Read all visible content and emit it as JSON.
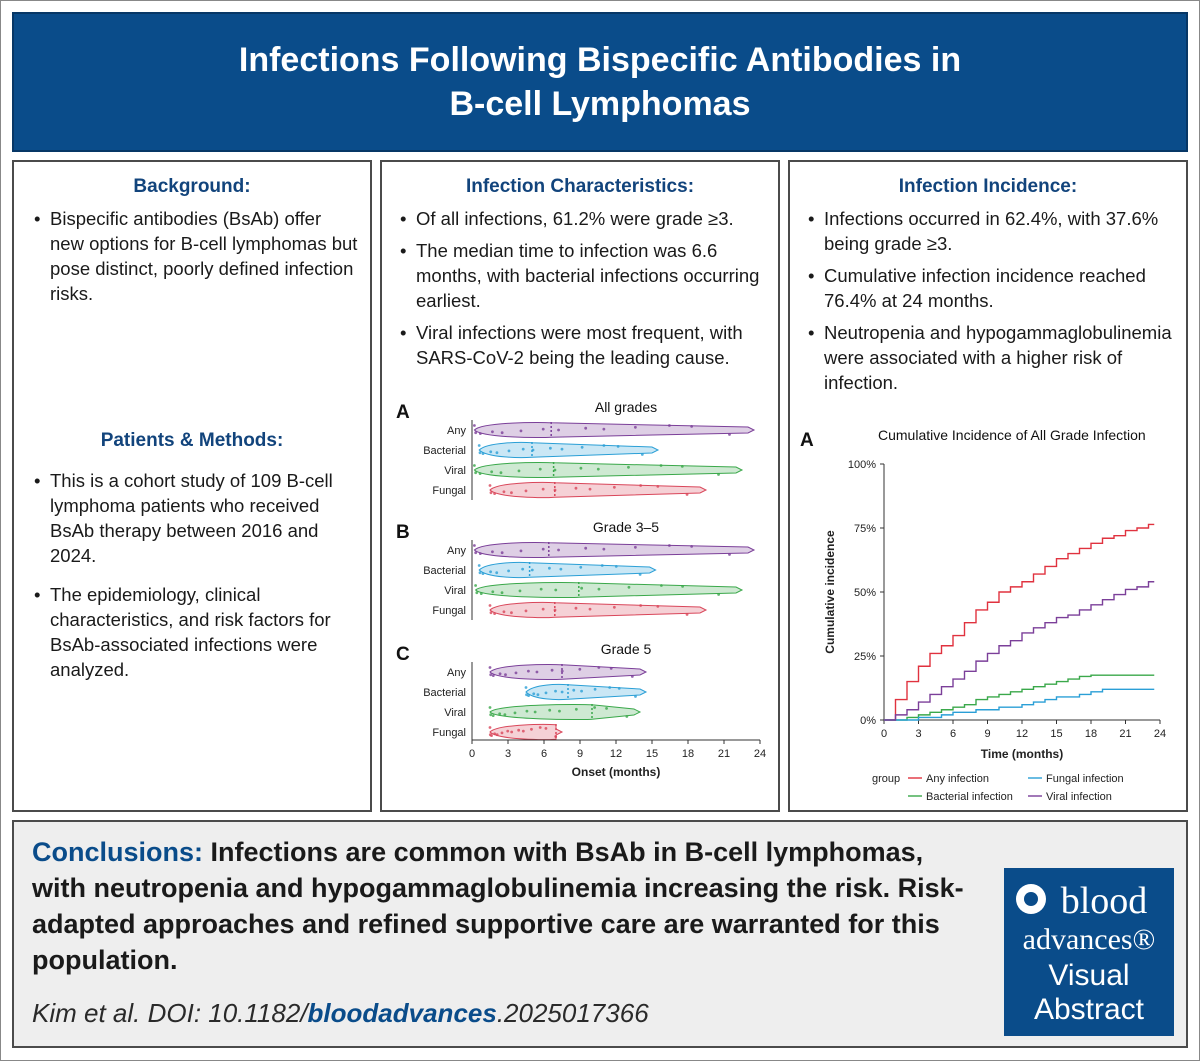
{
  "title": {
    "line1": "Infections Following Bispecific Antibodies in",
    "line2": "B-cell Lymphomas"
  },
  "background": {
    "heading": "Background:",
    "bullets": [
      "Bispecific antibodies (BsAb) offer new options for B-cell lymphomas but pose distinct, poorly defined infection risks."
    ]
  },
  "methods": {
    "heading": "Patients & Methods:",
    "bullets": [
      "This is a cohort study of 109 B-cell lymphoma patients who received BsAb therapy between 2016 and 2024.",
      "The epidemiology, clinical characteristics, and risk factors for BsAb-associated infections were analyzed."
    ]
  },
  "characteristics": {
    "heading": "Infection Characteristics:",
    "bullets": [
      "Of all infections, 61.2% were grade ≥3.",
      "The median time to infection was 6.6 months, with bacterial infections occurring earliest.",
      "Viral infections were most frequent, with SARS-CoV-2 being the leading cause."
    ]
  },
  "incidence": {
    "heading": "Infection Incidence:",
    "bullets": [
      "Infections occurred in 62.4%, with 37.6% being grade ≥3.",
      "Cumulative infection incidence reached 76.4% at 24 months.",
      "Neutropenia and hypogammaglobulinemia were associated with a higher risk of infection."
    ]
  },
  "conclusions": {
    "label": "Conclusions:",
    "text": "Infections are common with BsAb in B-cell lymphomas, with neutropenia and hypogammaglobulinemia increasing the risk. Risk-adapted approaches and refined supportive care are warranted for this population.",
    "citation_pre": "Kim et al. DOI: 10.1182/",
    "citation_journal": "bloodadvances",
    "citation_post": ".2025017366"
  },
  "badge": {
    "line1": "blood",
    "line2": "advances®",
    "line3": "Visual",
    "line4": "Abstract"
  },
  "colors": {
    "title_bg": "#0a4c8a",
    "heading": "#12447c",
    "any": "#7b3f99",
    "bacterial": "#2a9fd6",
    "viral": "#3aa84a",
    "fungal": "#d9465a"
  },
  "chart_data": [
    {
      "type": "violin",
      "panel_letter": "A",
      "title": "All grades",
      "categories": [
        "Any",
        "Bacterial",
        "Viral",
        "Fungal"
      ],
      "range": [
        [
          0.2,
          23.5
        ],
        [
          0.6,
          15.5
        ],
        [
          0.2,
          22.5
        ],
        [
          1.5,
          19.5
        ]
      ],
      "median": [
        6.6,
        5.0,
        6.8,
        6.9
      ],
      "xlim": [
        0,
        24
      ],
      "xticks": [
        0,
        3,
        6,
        9,
        12,
        15,
        18,
        21,
        24
      ]
    },
    {
      "type": "violin",
      "panel_letter": "B",
      "title": "Grade 3–5",
      "categories": [
        "Any",
        "Bacterial",
        "Viral",
        "Fungal"
      ],
      "range": [
        [
          0.2,
          23.5
        ],
        [
          0.6,
          15.3
        ],
        [
          0.3,
          22.5
        ],
        [
          1.5,
          19.5
        ]
      ],
      "median": [
        6.4,
        4.8,
        8.9,
        6.9
      ],
      "xlim": [
        0,
        24
      ],
      "xticks": [
        0,
        3,
        6,
        9,
        12,
        15,
        18,
        21,
        24
      ]
    },
    {
      "type": "violin",
      "panel_letter": "C",
      "title": "Grade 5",
      "categories": [
        "Any",
        "Bacterial",
        "Viral",
        "Fungal"
      ],
      "range": [
        [
          1.5,
          14.5
        ],
        [
          4.5,
          14.5
        ],
        [
          1.5,
          14.0
        ],
        [
          1.5,
          7.5
        ]
      ],
      "median": [
        7.5,
        8.0,
        10.0,
        7.0
      ],
      "xlim": [
        0,
        24
      ],
      "xticks": [
        0,
        3,
        6,
        9,
        12,
        15,
        18,
        21,
        24
      ],
      "xlabel": "Onset (months)"
    },
    {
      "type": "line",
      "panel_letter": "A",
      "title": "Cumulative Incidence of All Grade Infection",
      "xlabel": "Time (months)",
      "ylabel": "Cumulative incidence",
      "xlim": [
        0,
        24
      ],
      "ylim": [
        0,
        100
      ],
      "xticks": [
        0,
        3,
        6,
        9,
        12,
        15,
        18,
        21,
        24
      ],
      "yticks": [
        "0%",
        "25%",
        "50%",
        "75%",
        "100%"
      ],
      "legend_title": "group",
      "series": [
        {
          "name": "Any infection",
          "x": [
            0,
            1,
            2,
            3,
            4,
            5,
            6,
            7,
            8,
            9,
            10,
            11,
            12,
            13,
            14,
            15,
            16,
            17,
            18,
            19,
            20,
            21,
            22,
            23,
            23.5
          ],
          "y": [
            0,
            8,
            15,
            21,
            26,
            29,
            33,
            38,
            43,
            46,
            50,
            52,
            54,
            57,
            60,
            63,
            65,
            67,
            69,
            71,
            72,
            74,
            75,
            76.4,
            76.4
          ]
        },
        {
          "name": "Bacterial infection",
          "x": [
            0,
            1,
            2,
            3,
            4,
            5,
            6,
            7,
            8,
            9,
            10,
            11,
            12,
            13,
            14,
            15,
            16,
            17,
            18,
            19,
            20,
            21,
            22,
            23,
            23.5
          ],
          "y": [
            0,
            0,
            1,
            2,
            3,
            4,
            5,
            6,
            8,
            9,
            10,
            11,
            12,
            13,
            14,
            15,
            16,
            17,
            17.5,
            17.5,
            17.5,
            17.5,
            17.5,
            17.5,
            17.5
          ]
        },
        {
          "name": "Fungal infection",
          "x": [
            0,
            1,
            2,
            3,
            4,
            5,
            6,
            7,
            8,
            9,
            10,
            11,
            12,
            13,
            14,
            15,
            16,
            17,
            18,
            19,
            20,
            21,
            22,
            23,
            23.5
          ],
          "y": [
            0,
            0,
            0,
            1,
            1,
            2,
            3,
            3,
            4,
            4,
            5,
            5,
            6,
            7,
            8,
            9,
            9,
            10,
            11,
            12,
            12,
            12,
            12,
            12,
            12
          ]
        },
        {
          "name": "Viral infection",
          "x": [
            0,
            1,
            2,
            3,
            4,
            5,
            6,
            7,
            8,
            9,
            10,
            11,
            12,
            13,
            14,
            15,
            16,
            17,
            18,
            19,
            20,
            21,
            22,
            23,
            23.5
          ],
          "y": [
            0,
            2,
            4,
            7,
            10,
            13,
            16,
            19,
            23,
            26,
            29,
            31,
            34,
            36,
            38,
            40,
            41,
            43,
            45,
            47,
            49,
            51,
            52,
            54,
            54
          ]
        }
      ]
    }
  ]
}
